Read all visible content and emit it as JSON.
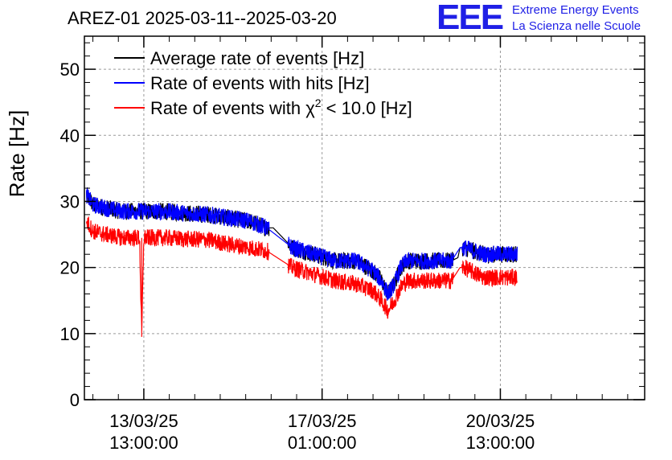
{
  "header": {
    "title": "AREZ-01 2025-03-11--2025-03-20",
    "logo": {
      "mark": "EEE",
      "line1": "Extreme Energy Events",
      "line2": "La Scienza nelle Scuole",
      "color": "#1f1fe6"
    }
  },
  "chart_data": {
    "type": "line",
    "title": "AREZ-01 2025-03-11--2025-03-20",
    "ylabel": "Rate [Hz]",
    "xlabel": "",
    "ylim": [
      0,
      55
    ],
    "y_ticks": [
      0,
      10,
      20,
      30,
      40,
      50
    ],
    "x_range_hours": [
      -28,
      236
    ],
    "x_ticks": [
      {
        "hours": 0,
        "date": "13/03/25",
        "time": "13:00:00"
      },
      {
        "hours": 84,
        "date": "17/03/25",
        "time": "01:00:00"
      },
      {
        "hours": 168,
        "date": "20/03/25",
        "time": "13:00:00"
      }
    ],
    "grid": true,
    "legend_position": "top-left",
    "legend": [
      {
        "label": "Average rate of events [Hz]",
        "color": "#000000"
      },
      {
        "label": "Rate of events with hits [Hz]",
        "color": "#0000ff"
      },
      {
        "label_prefix": "Rate of events with χ",
        "label_sup": "2",
        "label_suffix": " < 10.0 [Hz]",
        "color": "#ff0000"
      }
    ],
    "series": [
      {
        "name": "Average rate of events [Hz]",
        "color": "#000000",
        "x_hours": [
          -27,
          -24,
          -18,
          -10,
          0,
          10,
          20,
          30,
          40,
          50,
          58,
          61,
          70,
          80,
          90,
          100,
          108,
          112,
          115,
          118,
          121,
          124,
          128,
          135,
          145,
          148,
          149,
          151,
          160,
          170,
          176
        ],
        "y": [
          31,
          29.5,
          29,
          28.5,
          28.5,
          28.5,
          28.2,
          28,
          27.5,
          27,
          26,
          26,
          23,
          22,
          21,
          21,
          19.5,
          18,
          16,
          17.5,
          20,
          21,
          21,
          21,
          21,
          21.5,
          23,
          23,
          22,
          22,
          22
        ]
      },
      {
        "name": "Rate of events with hits [Hz]",
        "color": "#0000ff",
        "x_hours": [
          -27,
          -24,
          -18,
          -10,
          0,
          10,
          20,
          30,
          40,
          50,
          58,
          70,
          80,
          90,
          100,
          108,
          112,
          115,
          118,
          121,
          124,
          128,
          135,
          145,
          149,
          151,
          160,
          170,
          176
        ],
        "y": [
          31,
          29.5,
          29,
          28.5,
          28.5,
          28.5,
          28.2,
          28,
          27.5,
          27,
          26,
          23,
          22,
          21,
          21,
          19.5,
          18,
          16,
          17.5,
          20,
          21,
          21,
          21,
          21,
          23,
          23,
          22,
          22,
          22
        ]
      },
      {
        "name": "Rate of events with χ2 < 10.0 [Hz]",
        "color": "#ff0000",
        "x_hours": [
          -27,
          -24,
          -18,
          -10,
          -2,
          -1,
          0,
          10,
          20,
          30,
          40,
          50,
          58,
          70,
          80,
          90,
          100,
          108,
          112,
          115,
          118,
          121,
          124,
          128,
          135,
          145,
          149,
          151,
          160,
          170,
          176
        ],
        "y": [
          27,
          25.5,
          25,
          24.5,
          24.5,
          9.5,
          24.5,
          24.5,
          24.3,
          24.2,
          23.5,
          23,
          22.5,
          20,
          19,
          18,
          17.5,
          16.5,
          15,
          13.5,
          15,
          17,
          18,
          18,
          18,
          18,
          20,
          20,
          18.5,
          18.5,
          18.5
        ]
      }
    ]
  }
}
